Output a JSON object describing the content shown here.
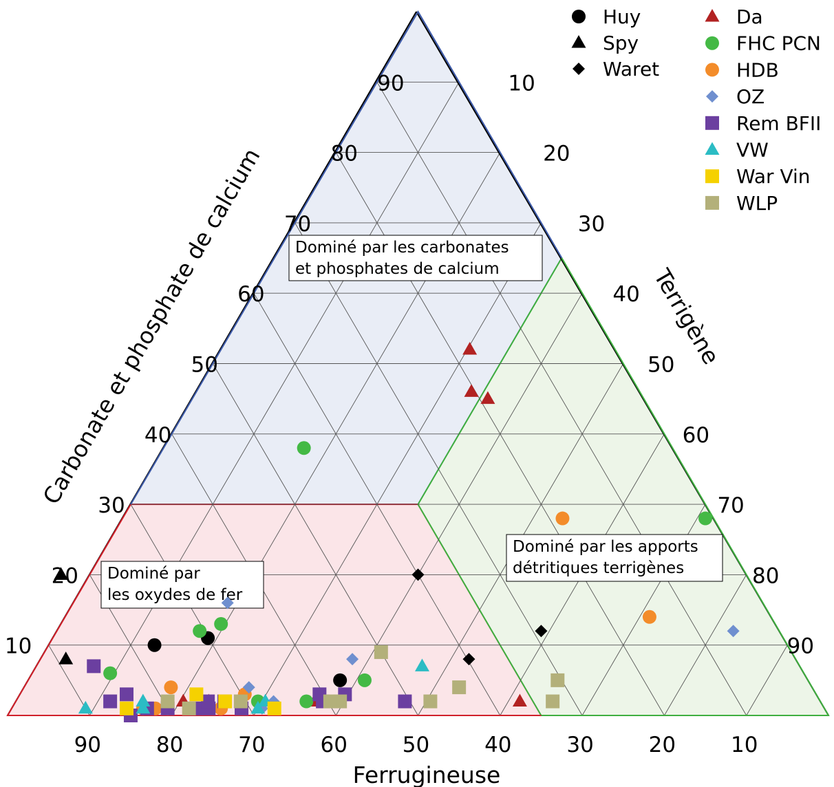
{
  "chart_data": {
    "type": "scatter",
    "subtype": "ternary",
    "axes": {
      "bottom": {
        "label": "Ferrugineuse",
        "ticks": [
          "90",
          "80",
          "70",
          "60",
          "50",
          "40",
          "30",
          "20",
          "10"
        ]
      },
      "left": {
        "label": "Carbonate et phosphate de calcium",
        "ticks": [
          "10",
          "20",
          "30",
          "40",
          "50",
          "60",
          "70",
          "80",
          "90"
        ]
      },
      "right": {
        "label": "Terrigène",
        "ticks": [
          "10",
          "20",
          "30",
          "40",
          "50",
          "60",
          "70",
          "80",
          "90"
        ]
      }
    },
    "grid": true,
    "legend_position": "top-right",
    "regions": [
      {
        "name": "carbonate",
        "label_lines": [
          "Dominé par les carbonates",
          "et phosphates de calcium"
        ],
        "fill": "#e9edf6",
        "stroke": "#3d5aa8",
        "vertices": [
          [
            70,
            30,
            0
          ],
          [
            0,
            100,
            0
          ],
          [
            0,
            30,
            70
          ]
        ]
      },
      {
        "name": "iron",
        "label_lines": [
          "Dominé par",
          "les oxydes de fer"
        ],
        "fill": "#fbe5e8",
        "stroke": "#d0202a",
        "vertices": [
          [
            100,
            0,
            0
          ],
          [
            70,
            30,
            0
          ],
          [
            0,
            30,
            70
          ],
          [
            0,
            0,
            100
          ]
        ]
      },
      {
        "name": "terrigenous",
        "label_lines": [
          "Dominé par les apports",
          "détritiques terrigènes"
        ],
        "fill": "#edf5e8",
        "stroke": "#3fae3f",
        "vertices": [
          [
            0,
            0,
            100
          ],
          [
            0,
            30,
            70
          ],
          [
            0,
            65,
            35
          ],
          [
            35,
            65,
            0
          ]
        ]
      }
    ],
    "series": [
      {
        "name": "Huy",
        "marker": "circle",
        "color": "#000000",
        "points": [
          [
            10.0,
            77.1
          ],
          [
            11.0,
            70.1
          ],
          [
            5.0,
            57.0
          ]
        ]
      },
      {
        "name": "Spy",
        "marker": "triangle",
        "color": "#000000",
        "points": [
          [
            20.0,
            83.5
          ],
          [
            8.0,
            88.9
          ]
        ]
      },
      {
        "name": "Waret",
        "marker": "diamond",
        "color": "#000000",
        "points": [
          [
            20.0,
            40.0
          ],
          [
            12.0,
            29.0
          ],
          [
            8.0,
            39.8
          ]
        ]
      },
      {
        "name": "Da",
        "marker": "triangle",
        "color": "#b22222",
        "points": [
          [
            52.0,
            17.7
          ],
          [
            46.0,
            20.5
          ],
          [
            45.0,
            19.0
          ],
          [
            2.0,
            36.6
          ],
          [
            2.0,
            61.6
          ],
          [
            2.0,
            77.6
          ],
          [
            2.0,
            74.5
          ]
        ]
      },
      {
        "name": "FHC PCN",
        "marker": "circle",
        "color": "#44b945",
        "points": [
          [
            38.0,
            44.9
          ],
          [
            12.0,
            70.6
          ],
          [
            13.0,
            67.5
          ],
          [
            6.0,
            84.5
          ],
          [
            5.0,
            54.0
          ],
          [
            2.0,
            58.6
          ],
          [
            2.0,
            68.5
          ],
          [
            28.0,
            1.0
          ],
          [
            2.0,
            62.6
          ],
          [
            2.0,
            60.0
          ]
        ]
      },
      {
        "name": "HDB",
        "marker": "circle",
        "color": "#f38c2a",
        "points": [
          [
            28.0,
            18.4
          ],
          [
            14.0,
            14.8
          ],
          [
            4.0,
            78.1
          ],
          [
            3.0,
            69.6
          ],
          [
            1.0,
            73.5
          ],
          [
            1.0,
            81.5
          ],
          [
            1.0,
            80.0
          ],
          [
            1.0,
            83.0
          ]
        ]
      },
      {
        "name": "OZ",
        "marker": "diamond",
        "color": "#6f8fcf",
        "points": [
          [
            16.0,
            65.2
          ],
          [
            8.0,
            54.0
          ],
          [
            12.0,
            5.6
          ],
          [
            4.0,
            68.6
          ],
          [
            2.0,
            66.6
          ],
          [
            1.0,
            68.5
          ]
        ]
      },
      {
        "name": "Rem BFII",
        "marker": "square",
        "color": "#6b3fa0",
        "points": [
          [
            7.0,
            86.0
          ],
          [
            3.0,
            84.0
          ],
          [
            2.0,
            86.5
          ],
          [
            1.0,
            82.5
          ],
          [
            1.0,
            80.0
          ],
          [
            1.0,
            76.5
          ],
          [
            1.0,
            75.0
          ],
          [
            2.0,
            74.6
          ],
          [
            2.0,
            72.6
          ],
          [
            1.0,
            71.0
          ],
          [
            3.0,
            60.5
          ],
          [
            2.0,
            60.6
          ],
          [
            3.0,
            57.4
          ],
          [
            2.0,
            50.6
          ],
          [
            0.0,
            85.0
          ]
        ]
      },
      {
        "name": "VW",
        "marker": "triangle",
        "color": "#2bbcc4",
        "points": [
          [
            1.0,
            90.0
          ],
          [
            2.0,
            82.5
          ],
          [
            1.0,
            83.0
          ],
          [
            2.0,
            67.6
          ],
          [
            1.0,
            69.0
          ],
          [
            7.0,
            46.0
          ]
        ]
      },
      {
        "name": "War Vin",
        "marker": "square",
        "color": "#f5d100",
        "points": [
          [
            1.0,
            85.0
          ],
          [
            3.0,
            75.5
          ],
          [
            2.0,
            72.5
          ],
          [
            1.0,
            67.0
          ]
        ]
      },
      {
        "name": "WLP",
        "marker": "square",
        "color": "#b3b07a",
        "points": [
          [
            2.0,
            79.5
          ],
          [
            1.0,
            77.4
          ],
          [
            2.0,
            70.6
          ],
          [
            9.0,
            50.0
          ],
          [
            2.0,
            58.5
          ],
          [
            2.0,
            59.7
          ],
          [
            2.0,
            47.5
          ],
          [
            4.0,
            43.0
          ],
          [
            5.0,
            30.5
          ],
          [
            2.0,
            32.6
          ]
        ]
      }
    ]
  }
}
